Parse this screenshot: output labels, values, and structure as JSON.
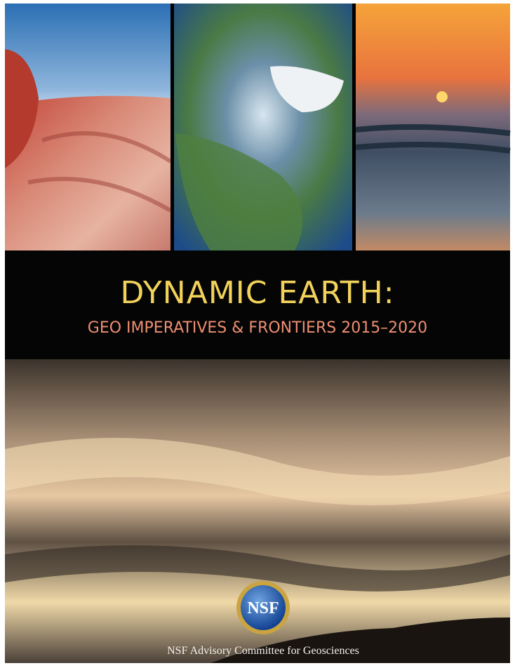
{
  "cover": {
    "title": "DYNAMIC EARTH:",
    "subtitle": "GEO IMPERATIVES & FRONTIERS 2015–2020",
    "logo": "NSF",
    "footer": "NSF Advisory Committee for Geosciences"
  }
}
